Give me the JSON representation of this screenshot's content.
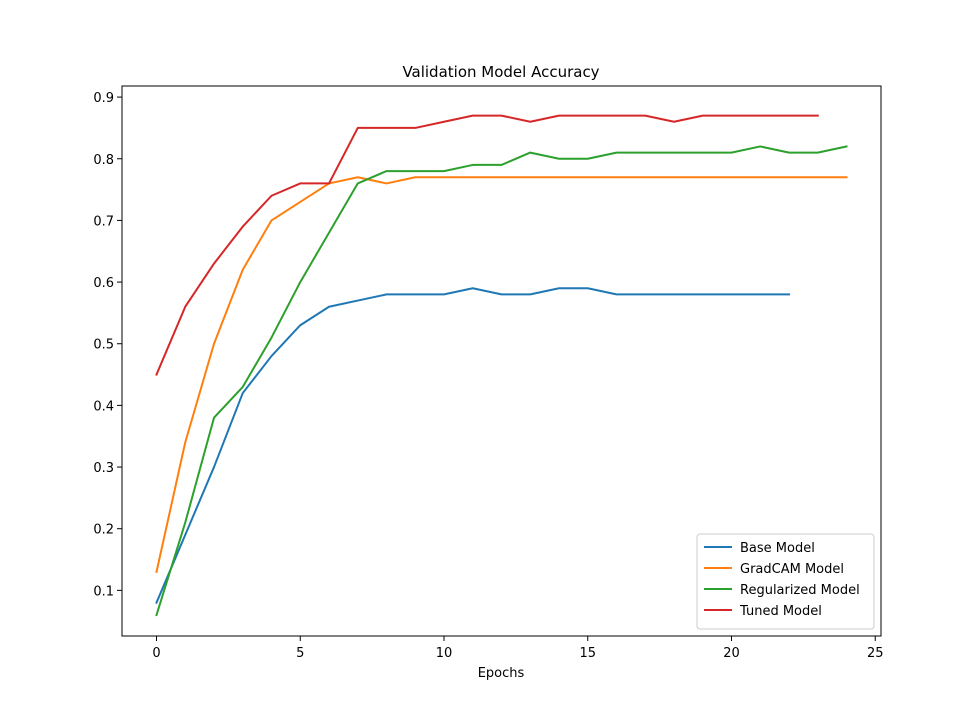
{
  "chart_data": {
    "type": "line",
    "title": "Validation Model Accuracy",
    "xlabel": "Epochs",
    "ylabel": "",
    "xlim": [
      -1.2,
      25.2
    ],
    "ylim": [
      0.026,
      0.918
    ],
    "xticks": [
      0,
      5,
      10,
      15,
      20,
      25
    ],
    "yticks": [
      0.1,
      0.2,
      0.3,
      0.4,
      0.5,
      0.6,
      0.7,
      0.8,
      0.9
    ],
    "grid": false,
    "legend_position": "lower-right",
    "series": [
      {
        "name": "Base Model",
        "color": "#1f77b4",
        "x": [
          0,
          1,
          2,
          3,
          4,
          5,
          6,
          7,
          8,
          9,
          10,
          11,
          12,
          13,
          14,
          15,
          16,
          17,
          18,
          19,
          20,
          21,
          22
        ],
        "values": [
          0.08,
          0.19,
          0.3,
          0.42,
          0.48,
          0.53,
          0.56,
          0.57,
          0.58,
          0.58,
          0.58,
          0.59,
          0.58,
          0.58,
          0.59,
          0.59,
          0.58,
          0.58,
          0.58,
          0.58,
          0.58,
          0.58,
          0.58
        ]
      },
      {
        "name": "GradCAM Model",
        "color": "#ff7f0e",
        "x": [
          0,
          1,
          2,
          3,
          4,
          5,
          6,
          7,
          8,
          9,
          10,
          11,
          12,
          13,
          14,
          15,
          16,
          17,
          18,
          19,
          20,
          21,
          22,
          23,
          24
        ],
        "values": [
          0.13,
          0.34,
          0.5,
          0.62,
          0.7,
          0.73,
          0.76,
          0.77,
          0.76,
          0.77,
          0.77,
          0.77,
          0.77,
          0.77,
          0.77,
          0.77,
          0.77,
          0.77,
          0.77,
          0.77,
          0.77,
          0.77,
          0.77,
          0.77,
          0.77
        ]
      },
      {
        "name": "Regularized Model",
        "color": "#2ca02c",
        "x": [
          0,
          1,
          2,
          3,
          4,
          5,
          6,
          7,
          8,
          9,
          10,
          11,
          12,
          13,
          14,
          15,
          16,
          17,
          18,
          19,
          20,
          21,
          22,
          23,
          24
        ],
        "values": [
          0.06,
          0.21,
          0.38,
          0.43,
          0.51,
          0.6,
          0.68,
          0.76,
          0.78,
          0.78,
          0.78,
          0.79,
          0.79,
          0.81,
          0.8,
          0.8,
          0.81,
          0.81,
          0.81,
          0.81,
          0.81,
          0.82,
          0.81,
          0.81,
          0.82
        ]
      },
      {
        "name": "Tuned Model",
        "color": "#d62728",
        "x": [
          0,
          1,
          2,
          3,
          4,
          5,
          6,
          7,
          8,
          9,
          10,
          11,
          12,
          13,
          14,
          15,
          16,
          17,
          18,
          19,
          20,
          21,
          22,
          23
        ],
        "values": [
          0.45,
          0.56,
          0.63,
          0.69,
          0.74,
          0.76,
          0.76,
          0.85,
          0.85,
          0.85,
          0.86,
          0.87,
          0.87,
          0.86,
          0.87,
          0.87,
          0.87,
          0.87,
          0.86,
          0.87,
          0.87,
          0.87,
          0.87,
          0.87
        ]
      }
    ]
  }
}
